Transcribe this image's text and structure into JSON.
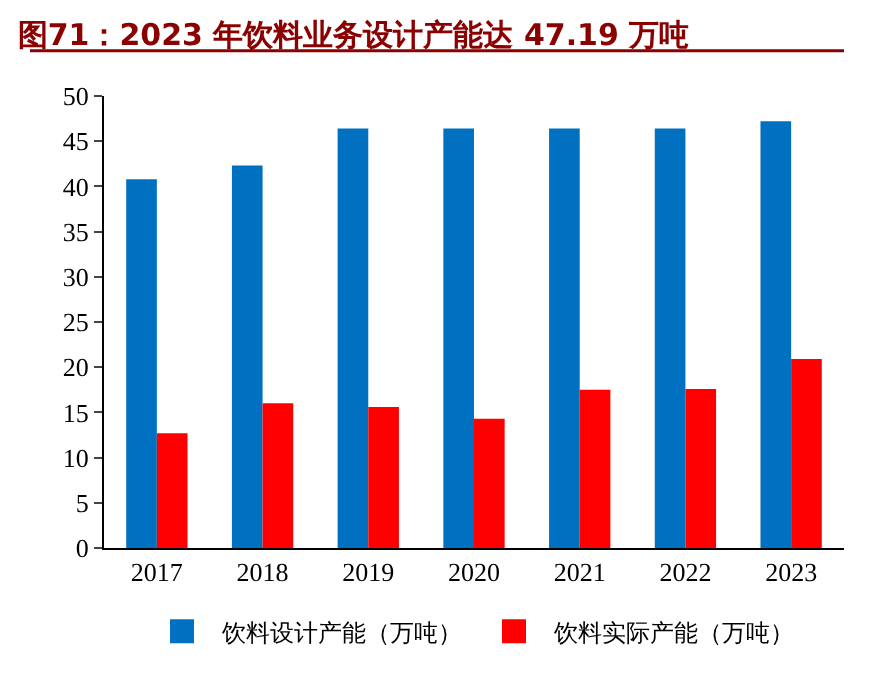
{
  "chart_data": {
    "type": "bar",
    "title": "图71：2023 年饮料业务设计产能达 47.19 万吨",
    "categories": [
      "2017",
      "2018",
      "2019",
      "2020",
      "2021",
      "2022",
      "2023"
    ],
    "series": [
      {
        "name": "饮料设计产能（万吨）",
        "color": "#0070c0",
        "values": [
          40.8,
          42.3,
          46.4,
          46.4,
          46.4,
          46.4,
          47.2
        ]
      },
      {
        "name": "饮料实际产能（万吨）",
        "color": "#ff0000",
        "values": [
          12.7,
          16.0,
          15.6,
          14.3,
          17.5,
          17.6,
          20.9
        ]
      }
    ],
    "ylim": [
      0,
      50
    ],
    "yticks": [
      0,
      5,
      10,
      15,
      20,
      25,
      30,
      35,
      40,
      45,
      50
    ],
    "legend": "bottom"
  }
}
